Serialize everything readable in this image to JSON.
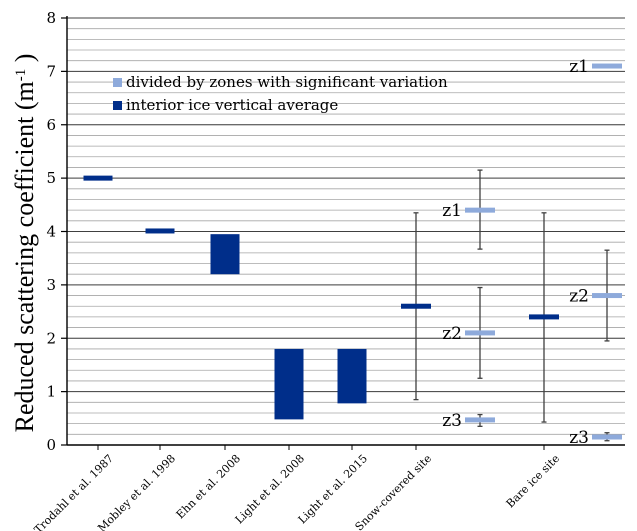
{
  "chart_data": {
    "type": "bar",
    "ylabel": "Reduced scattering coefficient (m",
    "ylabel_sup": "-1",
    "ylabel_close": " )",
    "ylim": [
      0,
      8
    ],
    "yticks": [
      0,
      1,
      2,
      3,
      4,
      5,
      6,
      7,
      8
    ],
    "ytick_labels": [
      "0",
      "1",
      "2",
      "3",
      "4",
      "5",
      "6",
      "7",
      "8"
    ],
    "minor_grid_step": 0.2,
    "grid": true,
    "legend_placement": "top-left",
    "legend": [
      {
        "label": "divided by zones with significant variation",
        "color": "#8eaadb"
      },
      {
        "label": "interior ice vertical average",
        "color": "#002e8a"
      }
    ],
    "categories": [
      "Trodahl et al. 1987",
      "Mobley et al. 1998",
      "Ehn et al. 2008",
      "Light et al. 2008",
      "Light et al. 2015",
      "Snow-covered site",
      "Bare ice site"
    ],
    "ranges": [
      {
        "category": "Trodahl et al. 1987",
        "low": 4.97,
        "high": 5.03
      },
      {
        "category": "Mobley et al. 1998",
        "low": 3.98,
        "high": 4.04
      },
      {
        "category": "Ehn et al. 2008",
        "low": 3.2,
        "high": 3.95
      },
      {
        "category": "Light et al. 2008",
        "low": 0.48,
        "high": 1.8
      },
      {
        "category": "Light et al. 2015",
        "low": 0.78,
        "high": 1.8
      }
    ],
    "averages": [
      {
        "category": "Snow-covered site",
        "value": 2.6,
        "err_low": 0.85,
        "err_high": 4.35
      },
      {
        "category": "Bare ice site",
        "value": 2.4,
        "err_low": 0.43,
        "err_high": 4.35
      }
    ],
    "zones": [
      {
        "site": "Snow-covered site",
        "label": "z1",
        "value": 4.4,
        "err_low": 3.67,
        "err_high": 5.15
      },
      {
        "site": "Snow-covered site",
        "label": "z2",
        "value": 2.1,
        "err_low": 1.25,
        "err_high": 2.95
      },
      {
        "site": "Snow-covered site",
        "label": "z3",
        "value": 0.47,
        "err_low": 0.35,
        "err_high": 0.57
      },
      {
        "site": "Bare ice site",
        "label": "z1",
        "value": 7.1,
        "err_low": 7.1,
        "err_high": 7.1
      },
      {
        "site": "Bare ice site",
        "label": "z2",
        "value": 2.8,
        "err_low": 1.95,
        "err_high": 3.65
      },
      {
        "site": "Bare ice site",
        "label": "z3",
        "value": 0.15,
        "err_low": 0.08,
        "err_high": 0.23
      }
    ]
  }
}
